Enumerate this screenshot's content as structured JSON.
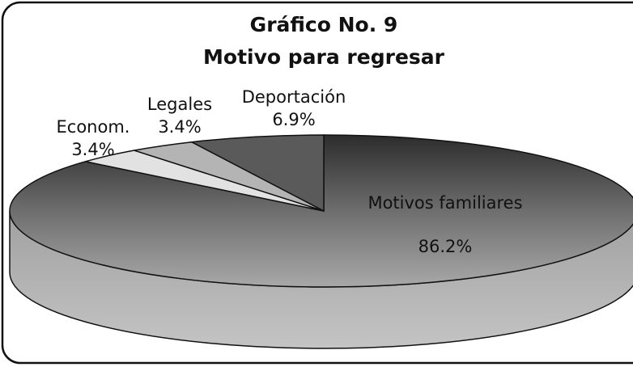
{
  "chart_data": {
    "type": "pie",
    "title": "Gráfico No. 9",
    "subtitle": "Motivo para regresar",
    "categories": [
      "Motivos familiares",
      "Econom.",
      "Legales",
      "Deportación"
    ],
    "values": [
      86.2,
      3.4,
      3.4,
      6.9
    ],
    "value_labels": [
      "86.2%",
      "3.4%",
      "3.4%",
      "6.9%"
    ],
    "colors": [
      "#8c8c8c",
      "#e2e2e2",
      "#b4b4b4",
      "#5a5a5a"
    ]
  }
}
